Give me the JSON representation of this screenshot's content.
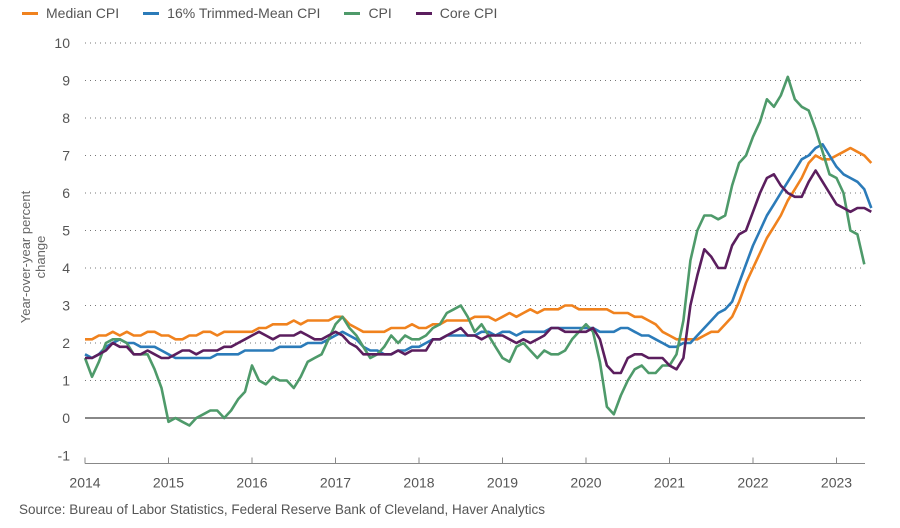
{
  "chart_data": {
    "type": "line",
    "title": "",
    "xlabel": "",
    "ylabel": "Year-over-year percent change",
    "ylim": [
      -1,
      10
    ],
    "xlim": [
      "2014-01",
      "2023-04"
    ],
    "yticks": [
      "-1",
      "0",
      "1",
      "2",
      "3",
      "4",
      "5",
      "6",
      "7",
      "8",
      "9",
      "10"
    ],
    "xticks": [
      "2014",
      "2015",
      "2016",
      "2017",
      "2018",
      "2019",
      "2020",
      "2021",
      "2022",
      "2023"
    ],
    "grid": "horizontal dotted",
    "legend_position": "top-left",
    "x_start": "2014-01",
    "frequency": "monthly",
    "series": [
      {
        "name": "Median CPI",
        "color": "#F0821E",
        "values": [
          2.1,
          2.1,
          2.2,
          2.2,
          2.3,
          2.2,
          2.3,
          2.2,
          2.2,
          2.3,
          2.3,
          2.2,
          2.2,
          2.1,
          2.1,
          2.2,
          2.2,
          2.3,
          2.3,
          2.2,
          2.3,
          2.3,
          2.3,
          2.3,
          2.3,
          2.4,
          2.4,
          2.5,
          2.5,
          2.5,
          2.6,
          2.5,
          2.6,
          2.6,
          2.6,
          2.6,
          2.7,
          2.7,
          2.5,
          2.4,
          2.3,
          2.3,
          2.3,
          2.3,
          2.4,
          2.4,
          2.4,
          2.5,
          2.4,
          2.4,
          2.5,
          2.5,
          2.6,
          2.6,
          2.6,
          2.6,
          2.7,
          2.7,
          2.7,
          2.6,
          2.7,
          2.8,
          2.7,
          2.8,
          2.9,
          2.8,
          2.9,
          2.9,
          2.9,
          3.0,
          3.0,
          2.9,
          2.9,
          2.9,
          2.9,
          2.9,
          2.8,
          2.8,
          2.8,
          2.7,
          2.7,
          2.6,
          2.5,
          2.3,
          2.2,
          2.1,
          2.1,
          2.1,
          2.1,
          2.2,
          2.3,
          2.3,
          2.5,
          2.7,
          3.1,
          3.6,
          4.0,
          4.4,
          4.8,
          5.1,
          5.4,
          5.8,
          6.1,
          6.4,
          6.8,
          7.0,
          6.9,
          6.9,
          7.0,
          7.1,
          7.2,
          7.1,
          7.0,
          6.8
        ]
      },
      {
        "name": "16% Trimmed-Mean CPI",
        "color": "#2B7BB9",
        "values": [
          1.7,
          1.6,
          1.7,
          1.9,
          2.0,
          2.1,
          2.0,
          2.0,
          1.9,
          1.9,
          1.9,
          1.8,
          1.7,
          1.6,
          1.6,
          1.6,
          1.6,
          1.6,
          1.6,
          1.7,
          1.7,
          1.7,
          1.7,
          1.8,
          1.8,
          1.8,
          1.8,
          1.8,
          1.9,
          1.9,
          1.9,
          1.9,
          2.0,
          2.0,
          2.0,
          2.1,
          2.2,
          2.3,
          2.2,
          2.1,
          1.9,
          1.8,
          1.8,
          1.7,
          1.7,
          1.8,
          1.8,
          1.9,
          1.9,
          2.0,
          2.1,
          2.1,
          2.2,
          2.2,
          2.2,
          2.2,
          2.2,
          2.3,
          2.3,
          2.2,
          2.3,
          2.3,
          2.2,
          2.3,
          2.3,
          2.3,
          2.3,
          2.4,
          2.4,
          2.4,
          2.4,
          2.4,
          2.4,
          2.4,
          2.3,
          2.3,
          2.3,
          2.4,
          2.4,
          2.3,
          2.2,
          2.2,
          2.1,
          2.0,
          1.9,
          1.9,
          2.0,
          2.0,
          2.2,
          2.4,
          2.6,
          2.8,
          2.9,
          3.1,
          3.6,
          4.1,
          4.6,
          5.0,
          5.4,
          5.7,
          6.0,
          6.3,
          6.6,
          6.9,
          7.0,
          7.2,
          7.3,
          7.0,
          6.7,
          6.5,
          6.4,
          6.3,
          6.1,
          5.6
        ]
      },
      {
        "name": "CPI",
        "color": "#4E9A6A",
        "values": [
          1.6,
          1.1,
          1.5,
          2.0,
          2.1,
          2.1,
          2.0,
          1.7,
          1.7,
          1.7,
          1.3,
          0.8,
          -0.1,
          0.0,
          -0.1,
          -0.2,
          0.0,
          0.1,
          0.2,
          0.2,
          0.0,
          0.2,
          0.5,
          0.7,
          1.4,
          1.0,
          0.9,
          1.1,
          1.0,
          1.0,
          0.8,
          1.1,
          1.5,
          1.6,
          1.7,
          2.1,
          2.5,
          2.7,
          2.4,
          2.2,
          1.9,
          1.6,
          1.7,
          1.9,
          2.2,
          2.0,
          2.2,
          2.1,
          2.1,
          2.2,
          2.4,
          2.5,
          2.8,
          2.9,
          3.0,
          2.7,
          2.3,
          2.5,
          2.2,
          1.9,
          1.6,
          1.5,
          1.9,
          2.0,
          1.8,
          1.6,
          1.8,
          1.7,
          1.7,
          1.8,
          2.1,
          2.3,
          2.5,
          2.3,
          1.5,
          0.3,
          0.1,
          0.6,
          1.0,
          1.3,
          1.4,
          1.2,
          1.2,
          1.4,
          1.4,
          1.7,
          2.6,
          4.2,
          5.0,
          5.4,
          5.4,
          5.3,
          5.4,
          6.2,
          6.8,
          7.0,
          7.5,
          7.9,
          8.5,
          8.3,
          8.6,
          9.1,
          8.5,
          8.3,
          8.2,
          7.7,
          7.1,
          6.5,
          6.4,
          6.0,
          5.0,
          4.9,
          4.1
        ]
      },
      {
        "name": "Core CPI",
        "color": "#5B1E5E",
        "values": [
          1.6,
          1.6,
          1.7,
          1.8,
          2.0,
          1.9,
          1.9,
          1.7,
          1.7,
          1.8,
          1.7,
          1.6,
          1.6,
          1.7,
          1.8,
          1.8,
          1.7,
          1.8,
          1.8,
          1.8,
          1.9,
          1.9,
          2.0,
          2.1,
          2.2,
          2.3,
          2.2,
          2.1,
          2.2,
          2.2,
          2.2,
          2.3,
          2.2,
          2.1,
          2.1,
          2.2,
          2.3,
          2.2,
          2.0,
          1.9,
          1.7,
          1.7,
          1.7,
          1.7,
          1.7,
          1.8,
          1.7,
          1.8,
          1.8,
          1.8,
          2.1,
          2.1,
          2.2,
          2.3,
          2.4,
          2.2,
          2.2,
          2.1,
          2.2,
          2.2,
          2.2,
          2.1,
          2.0,
          2.1,
          2.0,
          2.1,
          2.2,
          2.4,
          2.4,
          2.3,
          2.3,
          2.3,
          2.3,
          2.4,
          2.1,
          1.4,
          1.2,
          1.2,
          1.6,
          1.7,
          1.7,
          1.6,
          1.6,
          1.6,
          1.4,
          1.3,
          1.6,
          3.0,
          3.8,
          4.5,
          4.3,
          4.0,
          4.0,
          4.6,
          4.9,
          5.0,
          5.5,
          6.0,
          6.4,
          6.5,
          6.2,
          6.0,
          5.9,
          5.9,
          6.3,
          6.6,
          6.3,
          6.0,
          5.7,
          5.6,
          5.5,
          5.6,
          5.6,
          5.5
        ]
      }
    ]
  },
  "source": "Source: Bureau of Labor Statistics, Federal Reserve Bank of Cleveland, Haver Analytics"
}
